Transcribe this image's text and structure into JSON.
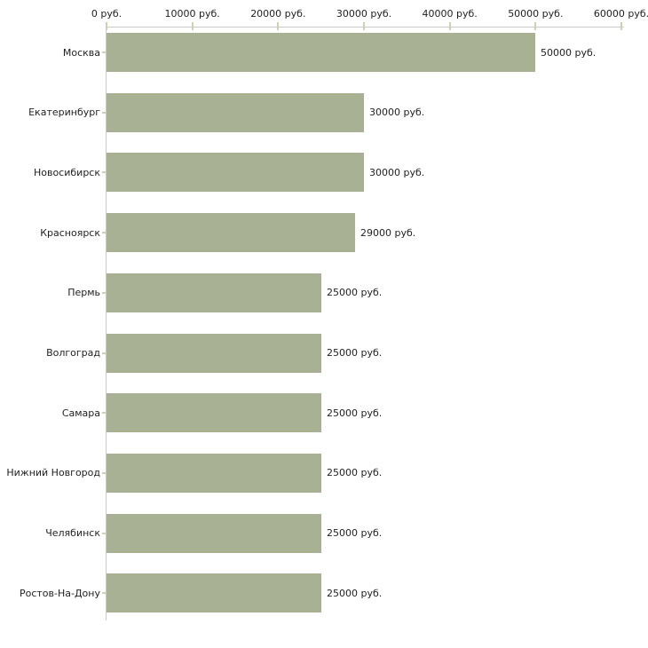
{
  "chart_data": {
    "type": "bar",
    "orientation": "horizontal",
    "title": "",
    "xlabel": "",
    "ylabel": "",
    "categories": [
      "Москва",
      "Екатеринбург",
      "Новосибирск",
      "Красноярск",
      "Пермь",
      "Волгоград",
      "Самара",
      "Нижний Новгород",
      "Челябинск",
      "Ростов-На-Дону"
    ],
    "values": [
      50000,
      30000,
      30000,
      29000,
      25000,
      25000,
      25000,
      25000,
      25000,
      25000
    ],
    "value_labels": [
      "50000 руб.",
      "30000 руб.",
      "30000 руб.",
      "29000 руб.",
      "25000 руб.",
      "25000 руб.",
      "25000 руб.",
      "25000 руб.",
      "25000 руб.",
      "25000 руб."
    ],
    "x_ticks": [
      0,
      10000,
      20000,
      30000,
      40000,
      50000,
      60000
    ],
    "x_tick_labels": [
      "0 руб.",
      "10000 руб.",
      "20000 руб.",
      "30000 руб.",
      "40000 руб.",
      "50000 руб.",
      "60000 руб."
    ],
    "xlim": [
      0,
      60000
    ],
    "grid": false,
    "legend": false,
    "colors": {
      "bar": "#a8b194",
      "axis_line": "#c9c9c9",
      "tick_mark": "#cdd0b2",
      "text": "#1f1f1f",
      "background": "#ffffff"
    }
  }
}
